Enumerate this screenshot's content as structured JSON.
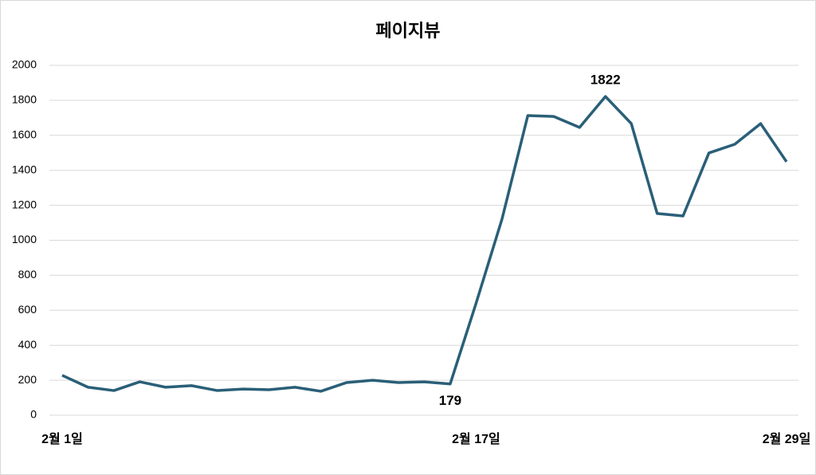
{
  "chart_data": {
    "type": "line",
    "title": "페이지뷰",
    "categories": [
      "2월 1일",
      null,
      null,
      null,
      null,
      null,
      null,
      null,
      null,
      null,
      null,
      null,
      null,
      null,
      null,
      null,
      "2월 17일",
      null,
      null,
      null,
      null,
      null,
      null,
      null,
      null,
      null,
      null,
      null,
      "2월 29일"
    ],
    "series": [
      {
        "name": "페이지뷰",
        "color": "#2a5f78",
        "values": [
          228,
          160,
          141,
          191,
          160,
          169,
          141,
          150,
          146,
          160,
          137,
          187,
          200,
          187,
          191,
          179,
          640,
          1120,
          1713,
          1708,
          1645,
          1822,
          1667,
          1153,
          1139,
          1499,
          1549,
          1667,
          1449
        ]
      }
    ],
    "labeled_points": [
      15,
      21
    ],
    "ylim": [
      0,
      2000
    ],
    "yticks": [
      0,
      200,
      400,
      600,
      800,
      1000,
      1200,
      1400,
      1600,
      1800,
      2000
    ],
    "grid": true
  }
}
